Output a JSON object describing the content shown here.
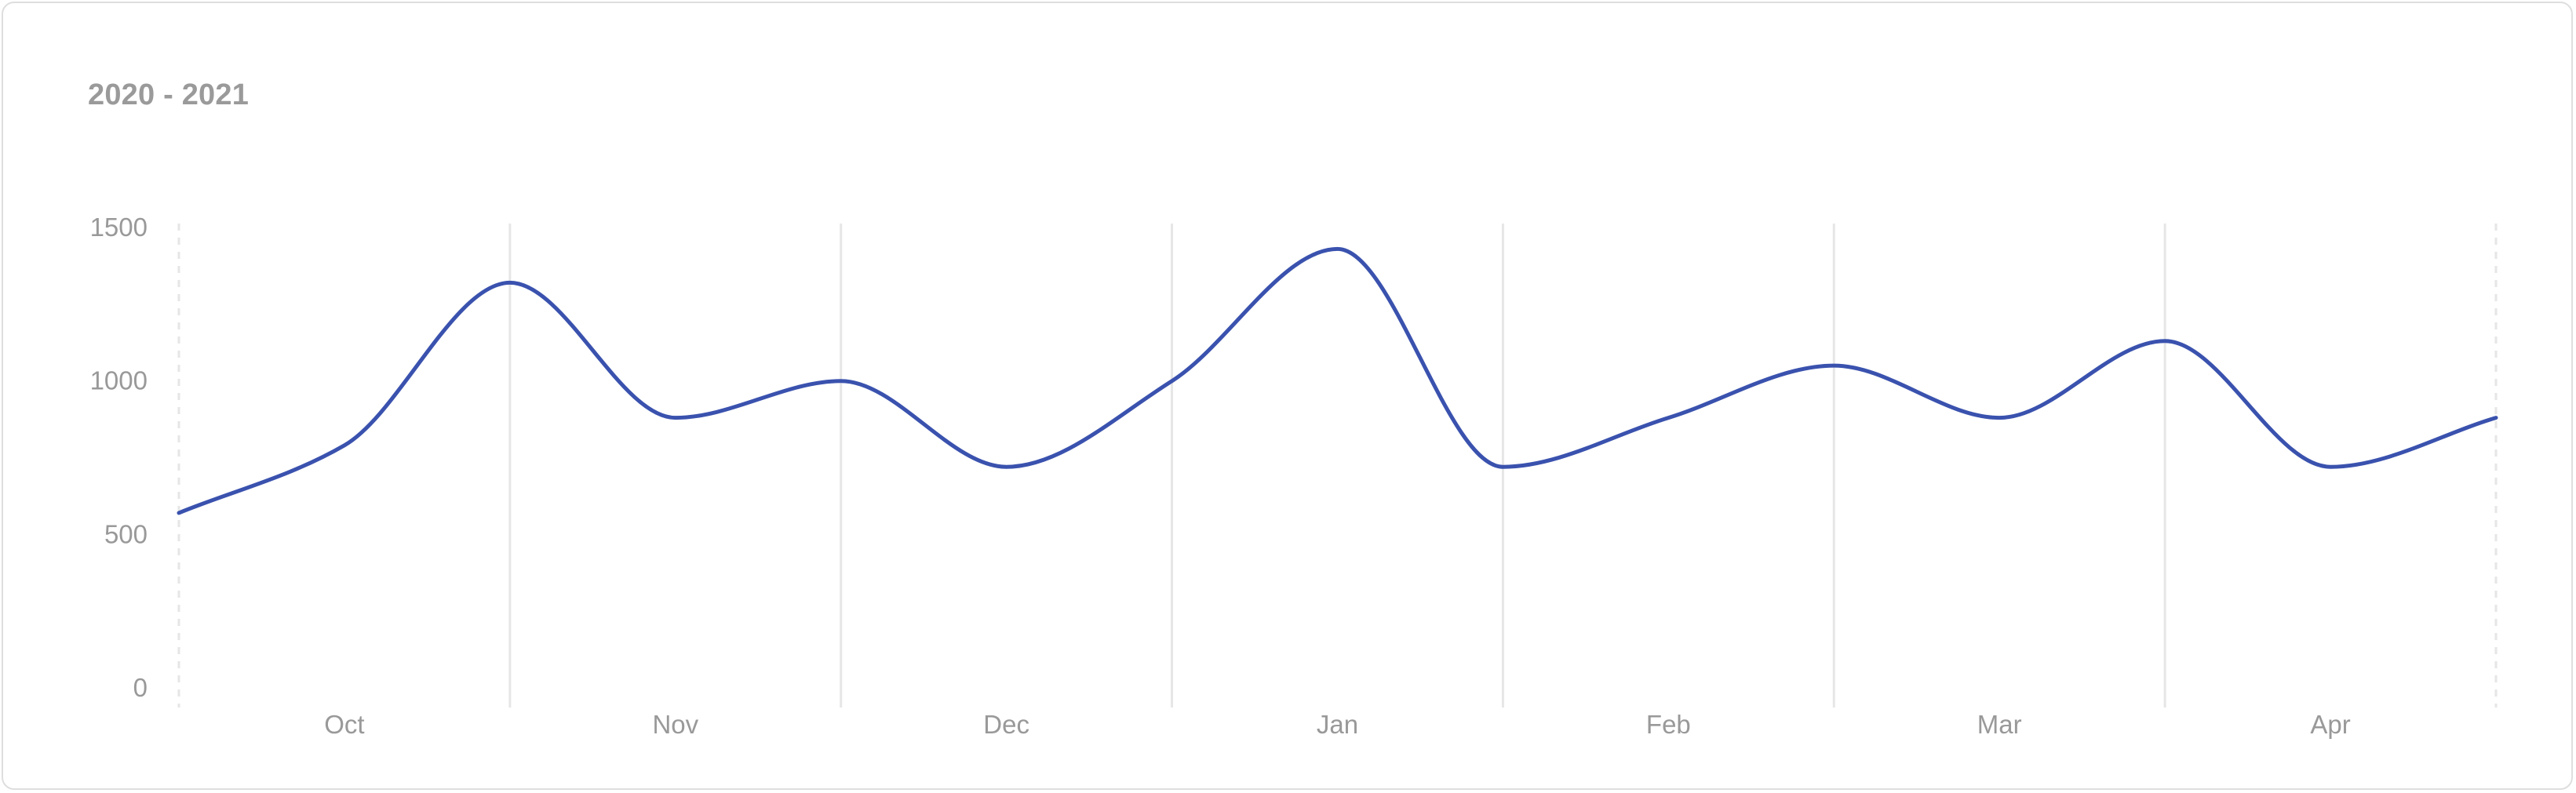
{
  "title": "2020 - 2021",
  "colors": {
    "line": "#3a52ae",
    "grid": "#e6e6e6",
    "tick_text": "#999999",
    "title": "#9a9a9a",
    "card_border": "#dedede"
  },
  "chart_data": {
    "type": "line",
    "title": "2020 - 2021",
    "xlabel": "",
    "ylabel": "",
    "x_tick_labels": [
      "Oct",
      "Nov",
      "Dec",
      "Jan",
      "Feb",
      "Mar",
      "Apr"
    ],
    "y_ticks": [
      0,
      500,
      1000,
      1500
    ],
    "ylim": [
      0,
      1500
    ],
    "grid": "vertical",
    "legend": "none",
    "smooth": true,
    "series": [
      {
        "values": [
          570,
          790,
          1320,
          880,
          1000,
          720,
          1000,
          1430,
          720,
          880,
          1050,
          880,
          1130,
          720,
          880
        ]
      }
    ]
  }
}
